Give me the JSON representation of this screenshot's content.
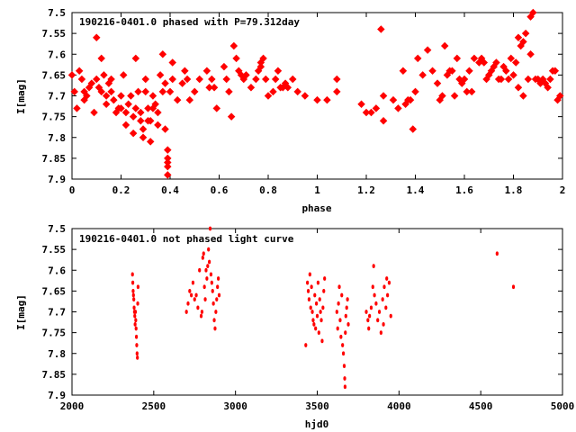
{
  "chart_data": [
    {
      "type": "scatter",
      "title": "190216-0401.0 phased with P=79.312day",
      "xlabel": "phase",
      "ylabel": "I[mag]",
      "xlim": [
        0,
        2
      ],
      "ylim": [
        7.9,
        7.5
      ],
      "x_ticks": [
        "0",
        "0.2",
        "0.4",
        "0.6",
        "0.8",
        "1",
        "1.2",
        "1.4",
        "1.6",
        "1.8",
        "2"
      ],
      "y_ticks": [
        "7.5",
        "7.55",
        "7.6",
        "7.65",
        "7.7",
        "7.75",
        "7.8",
        "7.85",
        "7.9"
      ],
      "grid": false,
      "marker_color": "#ff0000",
      "points": [
        [
          0.0,
          7.65
        ],
        [
          0.01,
          7.69
        ],
        [
          0.02,
          7.73
        ],
        [
          0.03,
          7.64
        ],
        [
          0.04,
          7.66
        ],
        [
          0.05,
          7.69
        ],
        [
          0.05,
          7.71
        ],
        [
          0.06,
          7.7
        ],
        [
          0.07,
          7.68
        ],
        [
          0.08,
          7.67
        ],
        [
          0.09,
          7.74
        ],
        [
          0.1,
          7.56
        ],
        [
          0.1,
          7.66
        ],
        [
          0.11,
          7.68
        ],
        [
          0.12,
          7.61
        ],
        [
          0.12,
          7.69
        ],
        [
          0.13,
          7.65
        ],
        [
          0.14,
          7.7
        ],
        [
          0.14,
          7.72
        ],
        [
          0.15,
          7.67
        ],
        [
          0.16,
          7.66
        ],
        [
          0.16,
          7.69
        ],
        [
          0.17,
          7.71
        ],
        [
          0.18,
          7.74
        ],
        [
          0.19,
          7.73
        ],
        [
          0.2,
          7.7
        ],
        [
          0.2,
          7.73
        ],
        [
          0.21,
          7.65
        ],
        [
          0.22,
          7.74
        ],
        [
          0.22,
          7.77
        ],
        [
          0.23,
          7.72
        ],
        [
          0.24,
          7.7
        ],
        [
          0.25,
          7.75
        ],
        [
          0.25,
          7.79
        ],
        [
          0.26,
          7.61
        ],
        [
          0.26,
          7.73
        ],
        [
          0.27,
          7.69
        ],
        [
          0.28,
          7.74
        ],
        [
          0.28,
          7.76
        ],
        [
          0.29,
          7.78
        ],
        [
          0.29,
          7.8
        ],
        [
          0.3,
          7.66
        ],
        [
          0.3,
          7.69
        ],
        [
          0.31,
          7.73
        ],
        [
          0.31,
          7.76
        ],
        [
          0.32,
          7.81
        ],
        [
          0.32,
          7.76
        ],
        [
          0.33,
          7.73
        ],
        [
          0.33,
          7.7
        ],
        [
          0.34,
          7.72
        ],
        [
          0.35,
          7.74
        ],
        [
          0.35,
          7.77
        ],
        [
          0.36,
          7.65
        ],
        [
          0.37,
          7.69
        ],
        [
          0.37,
          7.6
        ],
        [
          0.38,
          7.78
        ],
        [
          0.38,
          7.67
        ],
        [
          0.39,
          7.83
        ],
        [
          0.39,
          7.85
        ],
        [
          0.39,
          7.86
        ],
        [
          0.39,
          7.87
        ],
        [
          0.39,
          7.89
        ],
        [
          0.4,
          7.69
        ],
        [
          0.41,
          7.66
        ],
        [
          0.41,
          7.62
        ],
        [
          0.43,
          7.71
        ],
        [
          0.45,
          7.67
        ],
        [
          0.46,
          7.64
        ],
        [
          0.47,
          7.66
        ],
        [
          0.48,
          7.71
        ],
        [
          0.5,
          7.69
        ],
        [
          0.52,
          7.66
        ],
        [
          0.55,
          7.64
        ],
        [
          0.56,
          7.68
        ],
        [
          0.57,
          7.66
        ],
        [
          0.58,
          7.68
        ],
        [
          0.59,
          7.73
        ],
        [
          0.62,
          7.63
        ],
        [
          0.63,
          7.66
        ],
        [
          0.64,
          7.69
        ],
        [
          0.65,
          7.75
        ],
        [
          0.66,
          7.58
        ],
        [
          0.67,
          7.61
        ],
        [
          0.68,
          7.64
        ],
        [
          0.69,
          7.65
        ],
        [
          0.7,
          7.66
        ],
        [
          0.71,
          7.65
        ],
        [
          0.73,
          7.68
        ],
        [
          0.75,
          7.66
        ],
        [
          0.76,
          7.64
        ],
        [
          0.77,
          7.62
        ],
        [
          0.77,
          7.63
        ],
        [
          0.78,
          7.61
        ],
        [
          0.79,
          7.66
        ],
        [
          0.8,
          7.7
        ],
        [
          0.82,
          7.69
        ],
        [
          0.83,
          7.66
        ],
        [
          0.84,
          7.64
        ],
        [
          0.85,
          7.68
        ],
        [
          0.86,
          7.68
        ],
        [
          0.87,
          7.67
        ],
        [
          0.88,
          7.68
        ],
        [
          0.9,
          7.66
        ],
        [
          0.92,
          7.69
        ],
        [
          0.95,
          7.7
        ],
        [
          1.0,
          7.71
        ],
        [
          1.04,
          7.71
        ],
        [
          1.08,
          7.66
        ],
        [
          1.08,
          7.69
        ],
        [
          1.18,
          7.72
        ],
        [
          1.2,
          7.74
        ],
        [
          1.22,
          7.74
        ],
        [
          1.24,
          7.73
        ],
        [
          1.26,
          7.54
        ],
        [
          1.27,
          7.7
        ],
        [
          1.27,
          7.76
        ],
        [
          1.31,
          7.71
        ],
        [
          1.33,
          7.73
        ],
        [
          1.35,
          7.64
        ],
        [
          1.36,
          7.72
        ],
        [
          1.37,
          7.71
        ],
        [
          1.38,
          7.71
        ],
        [
          1.39,
          7.78
        ],
        [
          1.4,
          7.69
        ],
        [
          1.41,
          7.61
        ],
        [
          1.43,
          7.65
        ],
        [
          1.45,
          7.59
        ],
        [
          1.47,
          7.64
        ],
        [
          1.49,
          7.67
        ],
        [
          1.5,
          7.71
        ],
        [
          1.51,
          7.7
        ],
        [
          1.52,
          7.58
        ],
        [
          1.53,
          7.65
        ],
        [
          1.54,
          7.64
        ],
        [
          1.55,
          7.64
        ],
        [
          1.56,
          7.7
        ],
        [
          1.57,
          7.61
        ],
        [
          1.58,
          7.66
        ],
        [
          1.59,
          7.67
        ],
        [
          1.6,
          7.66
        ],
        [
          1.61,
          7.69
        ],
        [
          1.62,
          7.64
        ],
        [
          1.63,
          7.69
        ],
        [
          1.64,
          7.61
        ],
        [
          1.66,
          7.62
        ],
        [
          1.67,
          7.61
        ],
        [
          1.68,
          7.62
        ],
        [
          1.69,
          7.66
        ],
        [
          1.7,
          7.65
        ],
        [
          1.71,
          7.64
        ],
        [
          1.72,
          7.63
        ],
        [
          1.73,
          7.62
        ],
        [
          1.74,
          7.66
        ],
        [
          1.75,
          7.66
        ],
        [
          1.76,
          7.63
        ],
        [
          1.77,
          7.64
        ],
        [
          1.78,
          7.66
        ],
        [
          1.79,
          7.61
        ],
        [
          1.8,
          7.65
        ],
        [
          1.81,
          7.62
        ],
        [
          1.82,
          7.56
        ],
        [
          1.82,
          7.68
        ],
        [
          1.83,
          7.58
        ],
        [
          1.84,
          7.57
        ],
        [
          1.84,
          7.7
        ],
        [
          1.85,
          7.55
        ],
        [
          1.86,
          7.66
        ],
        [
          1.87,
          7.6
        ],
        [
          1.87,
          7.51
        ],
        [
          1.88,
          7.5
        ],
        [
          1.89,
          7.66
        ],
        [
          1.9,
          7.66
        ],
        [
          1.91,
          7.67
        ],
        [
          1.92,
          7.66
        ],
        [
          1.93,
          7.67
        ],
        [
          1.94,
          7.68
        ],
        [
          1.95,
          7.66
        ],
        [
          1.96,
          7.64
        ],
        [
          1.97,
          7.64
        ],
        [
          1.98,
          7.71
        ],
        [
          1.99,
          7.7
        ]
      ]
    },
    {
      "type": "scatter",
      "title": "190216-0401.0 not phased light curve",
      "xlabel": "hjd0",
      "ylabel": "I[mag]",
      "xlim": [
        2000,
        5000
      ],
      "ylim": [
        7.9,
        7.5
      ],
      "x_ticks": [
        "2000",
        "2500",
        "3000",
        "3500",
        "4000",
        "4500",
        "5000"
      ],
      "y_ticks": [
        "7.5",
        "7.55",
        "7.6",
        "7.65",
        "7.7",
        "7.75",
        "7.8",
        "7.85",
        "7.9"
      ],
      "grid": false,
      "marker_color": "#ff0000",
      "points": [
        [
          2370,
          7.61
        ],
        [
          2372,
          7.63
        ],
        [
          2374,
          7.65
        ],
        [
          2376,
          7.66
        ],
        [
          2378,
          7.67
        ],
        [
          2380,
          7.69
        ],
        [
          2382,
          7.7
        ],
        [
          2384,
          7.71
        ],
        [
          2386,
          7.73
        ],
        [
          2388,
          7.7
        ],
        [
          2390,
          7.72
        ],
        [
          2392,
          7.74
        ],
        [
          2394,
          7.76
        ],
        [
          2396,
          7.78
        ],
        [
          2398,
          7.8
        ],
        [
          2400,
          7.81
        ],
        [
          2402,
          7.68
        ],
        [
          2404,
          7.64
        ],
        [
          2700,
          7.7
        ],
        [
          2710,
          7.68
        ],
        [
          2720,
          7.65
        ],
        [
          2730,
          7.66
        ],
        [
          2740,
          7.63
        ],
        [
          2750,
          7.67
        ],
        [
          2760,
          7.66
        ],
        [
          2770,
          7.69
        ],
        [
          2780,
          7.6
        ],
        [
          2790,
          7.71
        ],
        [
          2795,
          7.7
        ],
        [
          2800,
          7.57
        ],
        [
          2805,
          7.56
        ],
        [
          2810,
          7.64
        ],
        [
          2815,
          7.67
        ],
        [
          2820,
          7.6
        ],
        [
          2825,
          7.62
        ],
        [
          2830,
          7.59
        ],
        [
          2835,
          7.55
        ],
        [
          2840,
          7.58
        ],
        [
          2845,
          7.5
        ],
        [
          2850,
          7.61
        ],
        [
          2855,
          7.63
        ],
        [
          2860,
          7.65
        ],
        [
          2865,
          7.68
        ],
        [
          2870,
          7.72
        ],
        [
          2875,
          7.74
        ],
        [
          2880,
          7.7
        ],
        [
          2885,
          7.67
        ],
        [
          2890,
          7.64
        ],
        [
          2895,
          7.62
        ],
        [
          2900,
          7.66
        ],
        [
          3430,
          7.78
        ],
        [
          3440,
          7.63
        ],
        [
          3445,
          7.65
        ],
        [
          3450,
          7.67
        ],
        [
          3455,
          7.61
        ],
        [
          3460,
          7.69
        ],
        [
          3465,
          7.64
        ],
        [
          3470,
          7.7
        ],
        [
          3475,
          7.72
        ],
        [
          3480,
          7.73
        ],
        [
          3485,
          7.66
        ],
        [
          3490,
          7.74
        ],
        [
          3495,
          7.68
        ],
        [
          3500,
          7.71
        ],
        [
          3505,
          7.63
        ],
        [
          3510,
          7.75
        ],
        [
          3515,
          7.67
        ],
        [
          3520,
          7.7
        ],
        [
          3525,
          7.72
        ],
        [
          3530,
          7.77
        ],
        [
          3535,
          7.69
        ],
        [
          3540,
          7.65
        ],
        [
          3545,
          7.62
        ],
        [
          3620,
          7.7
        ],
        [
          3625,
          7.74
        ],
        [
          3630,
          7.68
        ],
        [
          3635,
          7.64
        ],
        [
          3640,
          7.72
        ],
        [
          3645,
          7.76
        ],
        [
          3650,
          7.66
        ],
        [
          3655,
          7.78
        ],
        [
          3660,
          7.8
        ],
        [
          3665,
          7.83
        ],
        [
          3668,
          7.86
        ],
        [
          3670,
          7.88
        ],
        [
          3672,
          7.75
        ],
        [
          3675,
          7.71
        ],
        [
          3680,
          7.69
        ],
        [
          3685,
          7.67
        ],
        [
          3690,
          7.73
        ],
        [
          3800,
          7.7
        ],
        [
          3810,
          7.72
        ],
        [
          3815,
          7.74
        ],
        [
          3820,
          7.71
        ],
        [
          3830,
          7.69
        ],
        [
          3840,
          7.64
        ],
        [
          3845,
          7.59
        ],
        [
          3850,
          7.66
        ],
        [
          3860,
          7.68
        ],
        [
          3870,
          7.72
        ],
        [
          3880,
          7.7
        ],
        [
          3890,
          7.75
        ],
        [
          3900,
          7.67
        ],
        [
          3905,
          7.73
        ],
        [
          3910,
          7.64
        ],
        [
          3920,
          7.69
        ],
        [
          3925,
          7.62
        ],
        [
          3930,
          7.66
        ],
        [
          3940,
          7.63
        ],
        [
          3950,
          7.71
        ],
        [
          4600,
          7.56
        ],
        [
          4700,
          7.64
        ]
      ]
    }
  ]
}
